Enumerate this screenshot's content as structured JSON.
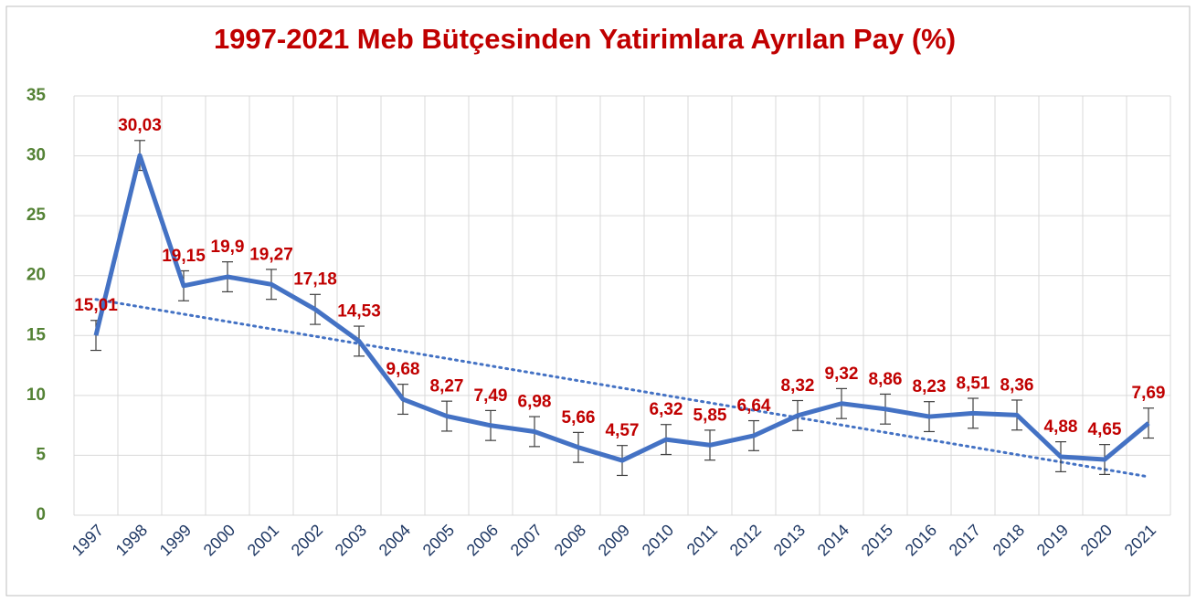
{
  "chart_data": {
    "type": "line",
    "title": "1997-2021 Meb Bütçesinden Yatirimlara Ayrılan Pay (%)",
    "categories": [
      "1997",
      "1998",
      "1999",
      "2000",
      "2001",
      "2002",
      "2003",
      "2004",
      "2005",
      "2006",
      "2007",
      "2008",
      "2009",
      "2010",
      "2011",
      "2012",
      "2013",
      "2014",
      "2015",
      "2016",
      "2017",
      "2018",
      "2019",
      "2020",
      "2021"
    ],
    "series": [
      {
        "name": "Pay",
        "color": "#4472c4",
        "values": [
          15.01,
          30.03,
          19.15,
          19.9,
          19.27,
          17.18,
          14.53,
          9.68,
          8.27,
          7.49,
          6.98,
          5.66,
          4.57,
          6.32,
          5.85,
          6.64,
          8.32,
          9.32,
          8.86,
          8.23,
          8.51,
          8.36,
          4.88,
          4.65,
          7.69
        ],
        "value_labels": [
          "15,01",
          "30,03",
          "19,15",
          "19,9",
          "19,27",
          "17,18",
          "14,53",
          "9,68",
          "8,27",
          "7,49",
          "6,98",
          "5,66",
          "4,57",
          "6,32",
          "5,85",
          "6,64",
          "8,32",
          "9,32",
          "8,86",
          "8,23",
          "8,51",
          "8,36",
          "4,88",
          "4,65",
          "7,69"
        ],
        "errors": [
          1.25,
          1.25,
          1.25,
          1.25,
          1.25,
          1.25,
          1.25,
          1.25,
          1.25,
          1.25,
          1.25,
          1.25,
          1.25,
          1.25,
          1.25,
          1.25,
          1.25,
          1.25,
          1.25,
          1.25,
          1.25,
          1.25,
          1.25,
          1.25,
          1.25
        ]
      }
    ],
    "trendline": true,
    "trendline_color": "#4472c4",
    "ylim": [
      0,
      35
    ],
    "yticks": [
      0,
      5,
      10,
      15,
      20,
      25,
      30,
      35
    ],
    "grid": true
  }
}
